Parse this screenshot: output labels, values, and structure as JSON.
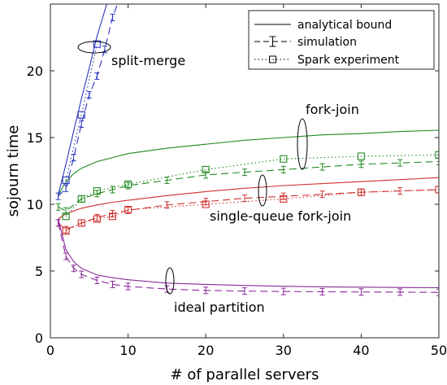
{
  "chart_data": {
    "type": "line",
    "xlabel": "# of parallel servers",
    "ylabel": "sojourn time",
    "xlim": [
      0,
      50
    ],
    "ylim": [
      0,
      25
    ],
    "xticks": [
      0,
      10,
      20,
      30,
      40,
      50
    ],
    "yticks": [
      0,
      5,
      10,
      15,
      20
    ],
    "grid": false,
    "legend": {
      "position": "top-right",
      "entries": [
        {
          "label": "analytical bound",
          "style": "solid"
        },
        {
          "label": "simulation",
          "style": "dashed-errorbar"
        },
        {
          "label": "Spark experiment",
          "style": "dotted-square"
        }
      ]
    },
    "annotations": [
      "split-merge",
      "fork-join",
      "single-queue fork-join",
      "ideal partition"
    ],
    "colors": {
      "split-merge": "#2a35c0",
      "fork-join": "#208a20",
      "single-queue fork-join": "#d03030",
      "ideal partition": "#8a2a9a"
    },
    "series": [
      {
        "group": "split-merge",
        "kind": "analytical",
        "x": [
          1,
          2,
          3,
          4,
          5,
          6,
          7,
          8
        ],
        "y": [
          10.7,
          13.0,
          15.5,
          17.9,
          20.2,
          22.6,
          24.5,
          26.5
        ]
      },
      {
        "group": "split-merge",
        "kind": "simulation",
        "x": [
          1,
          2,
          3,
          4,
          5,
          6,
          7,
          8,
          9
        ],
        "y": [
          10.6,
          11.2,
          13.5,
          16.0,
          18.2,
          19.6,
          21.6,
          24.0,
          25.6
        ]
      },
      {
        "group": "split-merge",
        "kind": "experiment",
        "x": [
          2,
          4,
          6
        ],
        "y": [
          11.8,
          16.7,
          22.0
        ]
      },
      {
        "group": "fork-join",
        "kind": "analytical",
        "x": [
          1,
          2,
          3,
          4,
          6,
          8,
          10,
          15,
          20,
          25,
          30,
          35,
          40,
          45,
          50
        ],
        "y": [
          10.7,
          11.7,
          12.3,
          12.7,
          13.2,
          13.5,
          13.8,
          14.2,
          14.5,
          14.8,
          15.0,
          15.2,
          15.3,
          15.45,
          15.55
        ]
      },
      {
        "group": "fork-join",
        "kind": "simulation",
        "x": [
          1,
          2,
          4,
          6,
          8,
          10,
          15,
          20,
          25,
          30,
          35,
          40,
          45,
          50
        ],
        "y": [
          9.8,
          9.5,
          10.4,
          10.8,
          11.1,
          11.4,
          11.8,
          12.2,
          12.4,
          12.6,
          12.8,
          13.0,
          13.1,
          13.2
        ]
      },
      {
        "group": "fork-join",
        "kind": "experiment",
        "x": [
          2,
          4,
          6,
          10,
          20,
          30,
          40,
          50
        ],
        "y": [
          9.1,
          10.4,
          11.0,
          11.5,
          12.6,
          13.4,
          13.6,
          13.7
        ]
      },
      {
        "group": "single-queue fork-join",
        "kind": "analytical",
        "x": [
          1,
          2,
          3,
          4,
          6,
          8,
          10,
          15,
          20,
          25,
          30,
          35,
          40,
          45,
          50
        ],
        "y": [
          8.9,
          9.3,
          9.5,
          9.7,
          9.95,
          10.15,
          10.3,
          10.65,
          10.95,
          11.2,
          11.4,
          11.55,
          11.7,
          11.85,
          12.0
        ]
      },
      {
        "group": "single-queue fork-join",
        "kind": "simulation",
        "x": [
          1,
          2,
          4,
          6,
          8,
          10,
          15,
          20,
          25,
          30,
          35,
          40,
          45,
          50
        ],
        "y": [
          8.6,
          8.1,
          8.6,
          9.0,
          9.3,
          9.55,
          9.95,
          10.2,
          10.45,
          10.6,
          10.75,
          10.9,
          11.0,
          11.1
        ]
      },
      {
        "group": "single-queue fork-join",
        "kind": "experiment",
        "x": [
          2,
          4,
          6,
          8,
          10,
          20,
          30,
          40,
          50
        ],
        "y": [
          8.0,
          8.6,
          8.9,
          9.1,
          9.6,
          10.0,
          10.4,
          10.9,
          11.1
        ]
      },
      {
        "group": "ideal partition",
        "kind": "analytical",
        "x": [
          1,
          2,
          3,
          4,
          6,
          8,
          10,
          15,
          20,
          25,
          30,
          35,
          40,
          45,
          50
        ],
        "y": [
          8.9,
          6.6,
          5.7,
          5.2,
          4.7,
          4.5,
          4.35,
          4.1,
          4.0,
          3.92,
          3.86,
          3.82,
          3.79,
          3.77,
          3.75
        ]
      },
      {
        "group": "ideal partition",
        "kind": "simulation",
        "x": [
          1,
          2,
          3,
          4,
          6,
          8,
          10,
          15,
          20,
          25,
          30,
          35,
          40,
          45,
          50
        ],
        "y": [
          8.6,
          6.1,
          5.2,
          4.75,
          4.3,
          4.0,
          3.85,
          3.65,
          3.55,
          3.5,
          3.47,
          3.45,
          3.43,
          3.42,
          3.4
        ]
      }
    ]
  }
}
